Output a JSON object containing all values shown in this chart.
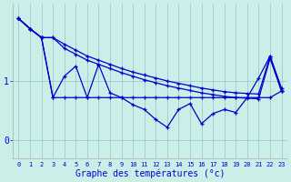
{
  "background_color": "#cceee8",
  "grid_color": "#99cccc",
  "line_color": "#0000cc",
  "x_values": [
    0,
    1,
    2,
    3,
    4,
    5,
    6,
    7,
    8,
    9,
    10,
    11,
    12,
    13,
    14,
    15,
    16,
    17,
    18,
    19,
    20,
    21,
    22,
    23
  ],
  "x_labels": [
    "0",
    "1",
    "2",
    "3",
    "4",
    "5",
    "6",
    "7",
    "8",
    "9",
    "10",
    "11",
    "12",
    "13",
    "14",
    "15",
    "16",
    "17",
    "18",
    "19",
    "20",
    "21",
    "22",
    "23"
  ],
  "line_top1": [
    2.05,
    1.88,
    1.73,
    1.73,
    1.62,
    1.52,
    1.42,
    1.35,
    1.28,
    1.21,
    1.15,
    1.1,
    1.05,
    1.0,
    0.96,
    0.92,
    0.88,
    0.85,
    0.82,
    0.8,
    0.79,
    0.78,
    1.42,
    0.88
  ],
  "line_top2": [
    2.05,
    1.88,
    1.73,
    1.73,
    1.55,
    1.45,
    1.35,
    1.28,
    1.21,
    1.14,
    1.08,
    1.02,
    0.97,
    0.92,
    0.88,
    0.84,
    0.8,
    0.77,
    0.74,
    0.72,
    0.71,
    0.7,
    1.38,
    0.83
  ],
  "line_flat": [
    2.05,
    1.88,
    1.73,
    0.72,
    0.72,
    0.72,
    0.72,
    0.72,
    0.72,
    0.72,
    0.72,
    0.72,
    0.72,
    0.72,
    0.72,
    0.72,
    0.72,
    0.72,
    0.72,
    0.72,
    0.72,
    0.72,
    0.72,
    0.83
  ],
  "line_zigzag": [
    2.05,
    1.88,
    1.73,
    0.72,
    1.08,
    1.25,
    0.72,
    1.28,
    0.8,
    0.72,
    0.6,
    0.52,
    0.35,
    0.22,
    0.52,
    0.62,
    0.28,
    0.45,
    0.52,
    0.47,
    0.72,
    1.05,
    1.42,
    0.83
  ],
  "xlabel": "Graphe des températures (°c)",
  "ylim": [
    -0.3,
    2.3
  ],
  "yticks": [
    0,
    1
  ],
  "ytick_labels": [
    "0",
    "1"
  ]
}
